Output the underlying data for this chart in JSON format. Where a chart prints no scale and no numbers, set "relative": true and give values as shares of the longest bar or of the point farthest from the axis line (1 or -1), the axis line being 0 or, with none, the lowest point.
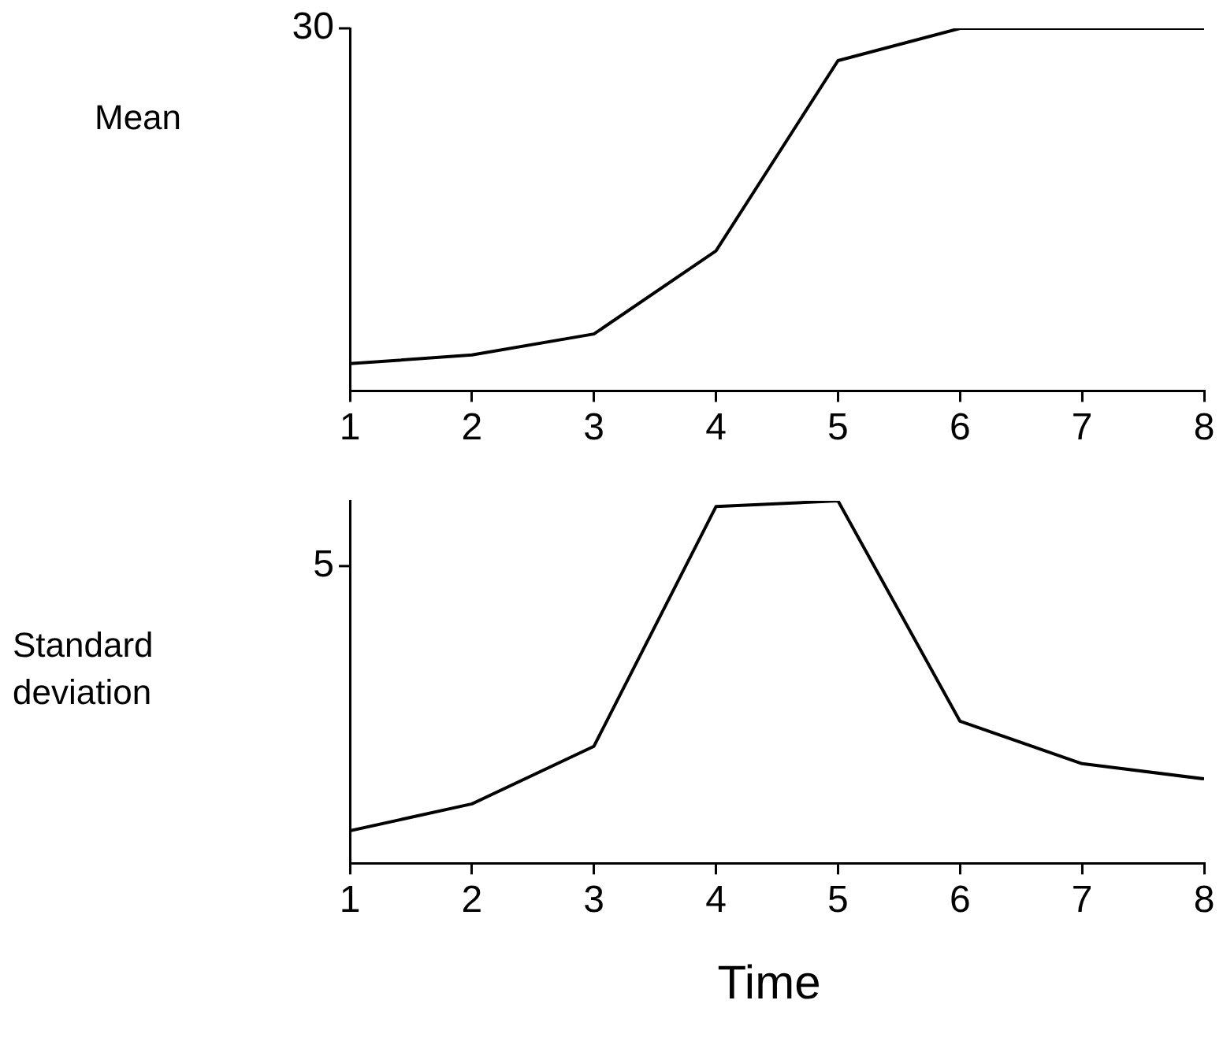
{
  "chart_data": [
    {
      "type": "line",
      "ylabel": "Mean",
      "annotations": [
        "30"
      ],
      "relative": true,
      "x": [
        1,
        2,
        3,
        4,
        5,
        6,
        7,
        8
      ],
      "series": [
        {
          "color": "#000000",
          "values": [
            0.075,
            0.099,
            0.157,
            0.386,
            0.911,
            1,
            1,
            1
          ]
        }
      ],
      "xlim": [
        1,
        8
      ],
      "xticks": [
        1,
        2,
        3,
        4,
        5,
        6,
        7,
        8
      ],
      "grid": false,
      "legend": false,
      "marker": "none",
      "line_style": "solid"
    },
    {
      "type": "line",
      "ylabel": "Standard deviation",
      "xlabel": "Time",
      "annotations": [
        "5"
      ],
      "relative": true,
      "x": [
        1,
        2,
        3,
        4,
        5,
        6,
        7,
        8
      ],
      "series": [
        {
          "color": "#000000",
          "values": [
            0.09,
            0.164,
            0.323,
            0.984,
            1,
            0.392,
            0.275,
            0.233
          ]
        }
      ],
      "xlim": [
        1,
        8
      ],
      "xticks": [
        1,
        2,
        3,
        4,
        5,
        6,
        7,
        8
      ],
      "grid": false,
      "legend": false,
      "marker": "none",
      "line_style": "solid"
    }
  ]
}
